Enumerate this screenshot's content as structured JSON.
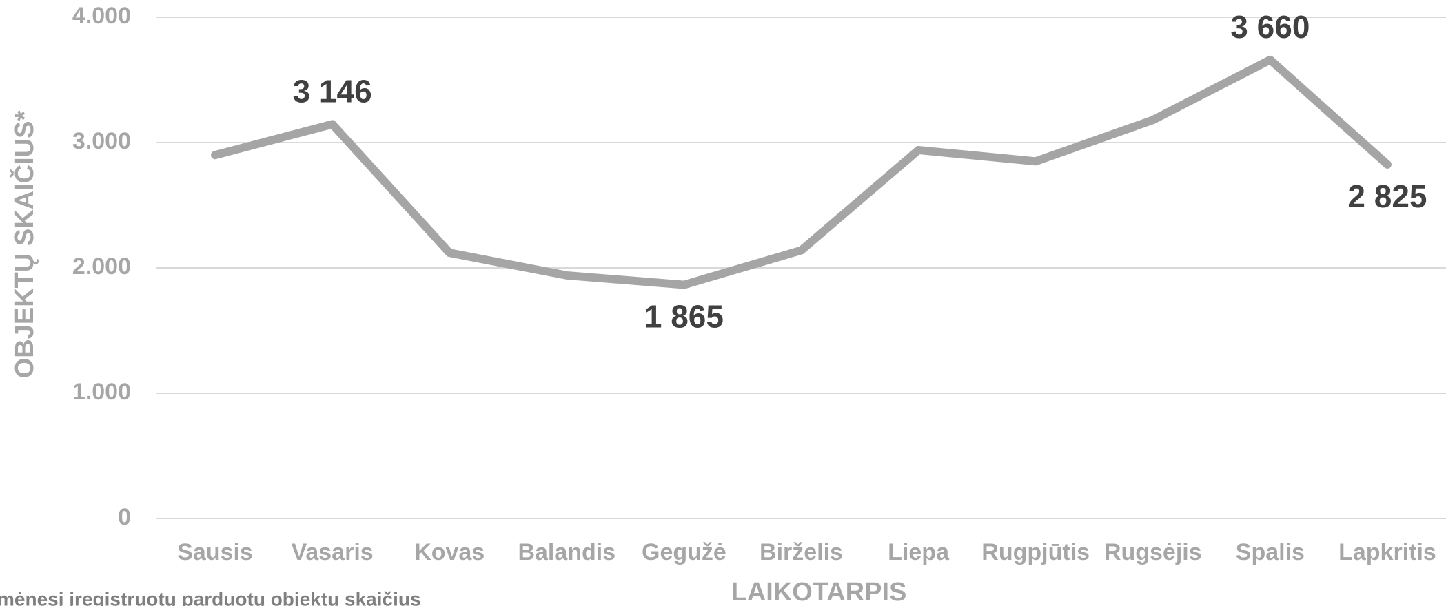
{
  "chart_data": {
    "type": "line",
    "categories": [
      "Sausis",
      "Vasaris",
      "Kovas",
      "Balandis",
      "Gegužė",
      "Birželis",
      "Liepa",
      "Rugpjūtis",
      "Rugsėjis",
      "Spalis",
      "Lapkritis"
    ],
    "series": [
      {
        "name": "Objektų skaičius",
        "color": "#a5a5a5",
        "values": [
          2900,
          3146,
          2120,
          1940,
          1865,
          2140,
          2940,
          2850,
          3180,
          3660,
          2825
        ],
        "value_labels": [
          null,
          "3 146",
          null,
          null,
          "1 865",
          null,
          null,
          null,
          null,
          "3 660",
          "2 825"
        ]
      }
    ],
    "ylim": [
      0,
      4000
    ],
    "yticks": [
      {
        "value": 0,
        "label": "0"
      },
      {
        "value": 1000,
        "label": "1.000"
      },
      {
        "value": 2000,
        "label": "2.000"
      },
      {
        "value": 3000,
        "label": "3.000"
      },
      {
        "value": 4000,
        "label": "4.000"
      }
    ],
    "grid": true,
    "ylabel": "OBJEKTŲ SKAIČIUS*",
    "xlabel": "LAIKOTARPIS",
    "footnote": "mėnesį įregistruotų parduotų objektų skaičius"
  }
}
